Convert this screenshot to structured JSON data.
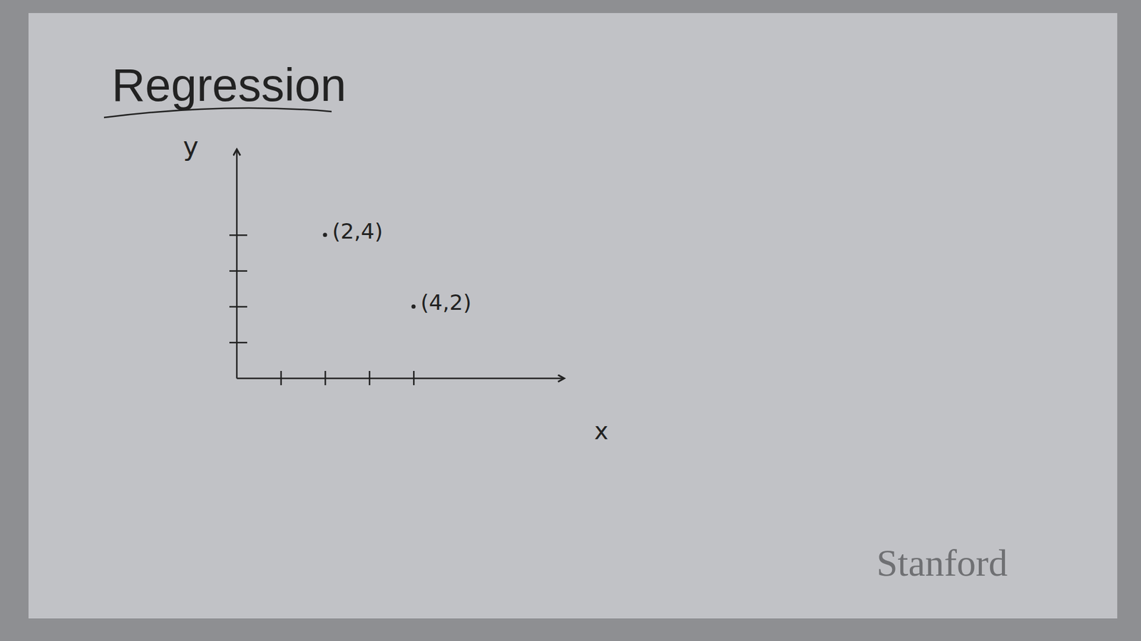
{
  "chart_data": {
    "type": "scatter",
    "title": "Regression",
    "x_label": "x",
    "y_label": "y",
    "x": [
      2,
      4
    ],
    "values": [
      4,
      2
    ],
    "annotations": [
      "(2,4)",
      "(4,2)"
    ],
    "xlim": [
      0,
      7.4
    ],
    "ylim": [
      0,
      6.4
    ],
    "xticks": [
      1,
      2,
      3,
      4
    ],
    "yticks": [
      1,
      2,
      3,
      4
    ],
    "tick_labels": false,
    "grid": false,
    "marker": "dot",
    "color": "#222222",
    "watermark": "Stanford"
  }
}
